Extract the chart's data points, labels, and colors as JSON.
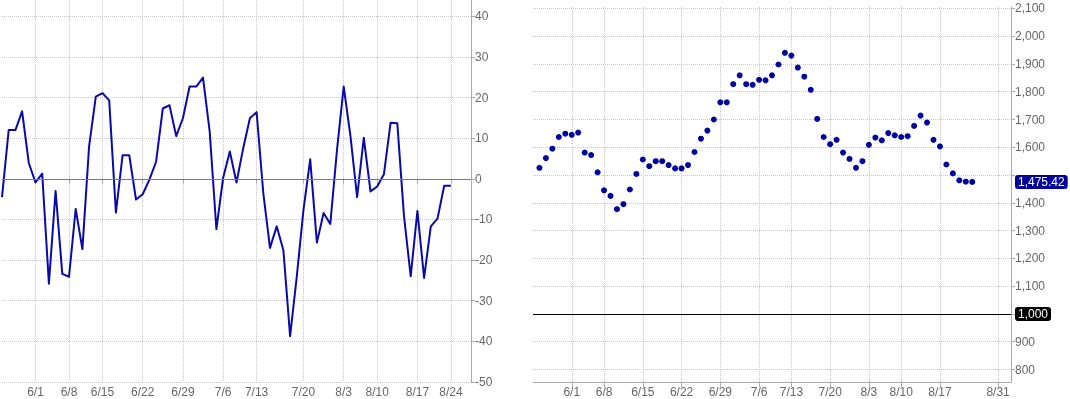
{
  "chart_data": [
    {
      "type": "line",
      "color": "#0a0aa8",
      "grid": true,
      "categories": [
        null,
        null,
        null,
        null,
        null,
        "6/1",
        null,
        null,
        null,
        null,
        "6/8",
        null,
        null,
        null,
        null,
        "6/15",
        null,
        null,
        null,
        null,
        null,
        "6/22",
        null,
        null,
        null,
        null,
        null,
        "6/29",
        null,
        null,
        null,
        null,
        null,
        "7/6",
        null,
        null,
        null,
        null,
        "7/13",
        null,
        null,
        null,
        null,
        null,
        null,
        "7/20",
        null,
        null,
        null,
        null,
        null,
        "8/3",
        null,
        null,
        null,
        null,
        "8/10",
        null,
        null,
        null,
        null,
        null,
        "8/17",
        null,
        null,
        null,
        null,
        "8/24",
        null,
        null,
        null
      ],
      "values": [
        -4.5,
        12,
        12,
        16.6,
        3.9,
        -0.9,
        1.3,
        -25.8,
        -3,
        -23.4,
        -24.1,
        -7.4,
        -17.3,
        8,
        20.2,
        21.1,
        19.3,
        -8.3,
        5.8,
        5.8,
        -5.1,
        -3.8,
        -0.2,
        4.2,
        17.3,
        18.1,
        10.5,
        14.9,
        22.7,
        22.7,
        24.9,
        11.6,
        -12.4,
        0.2,
        6.7,
        -0.9,
        7.5,
        14.9,
        16.4,
        -3.5,
        -17,
        -11.7,
        -17.6,
        -38.7,
        -24,
        -7.6,
        4.8,
        -15.7,
        -8.4,
        -11.1,
        7.1,
        22.7,
        10.6,
        -4.5,
        10.1,
        -3.1,
        -1.9,
        1.1,
        13.8,
        13.7,
        -9.2,
        -24,
        -7.9,
        -24.4,
        -11.7,
        -9.8,
        -1.7,
        -1.7,
        null,
        null,
        null
      ],
      "ylim": [
        -50,
        44
      ],
      "yticks": [
        -50,
        -40,
        -30,
        -20,
        -10,
        0,
        10,
        20,
        30,
        40
      ],
      "ref_lines": [
        {
          "axis": "y",
          "value": 0,
          "color": "#5f8596"
        }
      ]
    },
    {
      "type": "scatter",
      "color": "#00009c",
      "marker": "circle",
      "grid": true,
      "categories": [
        null,
        null,
        null,
        null,
        null,
        null,
        "6/1",
        null,
        null,
        null,
        null,
        "6/8",
        null,
        null,
        null,
        null,
        null,
        "6/15",
        null,
        null,
        null,
        null,
        null,
        "6/22",
        null,
        null,
        null,
        null,
        null,
        "6/29",
        null,
        null,
        null,
        null,
        null,
        "7/6",
        null,
        null,
        null,
        null,
        "7/13",
        null,
        null,
        null,
        null,
        null,
        "7/20",
        null,
        null,
        null,
        null,
        null,
        "8/3",
        null,
        null,
        null,
        null,
        "8/10",
        null,
        null,
        null,
        null,
        null,
        "8/17",
        null,
        null,
        null,
        null,
        null,
        null,
        null,
        null,
        "8/31",
        null,
        null
      ],
      "values": [
        null,
        1526,
        1561,
        1595,
        1637,
        1649,
        1645,
        1653,
        1581,
        1572,
        1510,
        1445,
        1425,
        1377,
        1395,
        1448,
        1504,
        1556,
        1532,
        1550,
        1550,
        1536,
        1524,
        1524,
        1536,
        1583,
        1631,
        1660,
        1700,
        1762,
        1762,
        1827,
        1859,
        1827,
        1825,
        1843,
        1841,
        1859,
        1898,
        1940,
        1930,
        1887,
        1854,
        1807,
        1702,
        1637,
        1611,
        1627,
        1581,
        1558,
        1526,
        1550,
        1609,
        1635,
        1625,
        1651,
        1643,
        1637,
        1640,
        1677,
        1714,
        1689,
        1627,
        1603,
        1538,
        1506,
        1481,
        1476,
        1475.42,
        null,
        null,
        null,
        null,
        null,
        null
      ],
      "ylim": [
        755,
        2105
      ],
      "yticks": [
        800,
        900,
        {
          "value": 1000,
          "label": null
        },
        {
          "value": 1100,
          "label": "1,100"
        },
        {
          "value": 1200,
          "label": "1,200"
        },
        {
          "value": 1300,
          "label": "1,300"
        },
        {
          "value": 1400,
          "label": "1,400"
        },
        {
          "value": 1500,
          "label": null
        },
        {
          "value": 1600,
          "label": "1,600"
        },
        {
          "value": 1700,
          "label": "1,700"
        },
        {
          "value": 1800,
          "label": "1,800"
        },
        {
          "value": 1900,
          "label": "1,900"
        },
        {
          "value": 2000,
          "label": "2,000"
        },
        {
          "value": 2100,
          "label": "2,100"
        }
      ],
      "ref_lines": [
        {
          "axis": "y",
          "value": 1000,
          "label": "1,000",
          "color": "#000000"
        }
      ],
      "annotations": [
        "1,475.42"
      ]
    }
  ]
}
